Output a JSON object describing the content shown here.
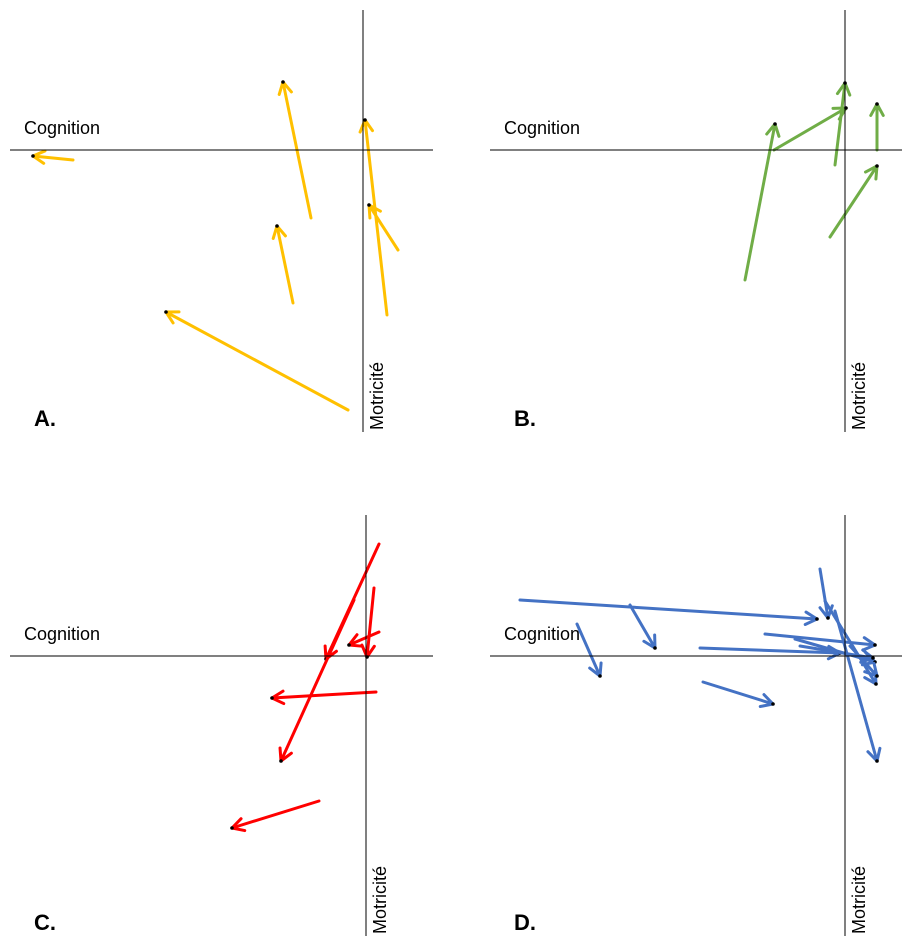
{
  "chart_data": [
    {
      "type": "scatter",
      "panel_label": "A.",
      "xlabel": "Cognition",
      "ylabel": "Motricité",
      "color": "#FFC000",
      "arrows": [
        {
          "from": [
            -2.9,
            -0.1
          ],
          "to": [
            -3.3,
            -0.06
          ]
        },
        {
          "from": [
            -0.52,
            -0.68
          ],
          "to": [
            -0.8,
            0.68
          ]
        },
        {
          "from": [
            -0.7,
            -1.53
          ],
          "to": [
            -0.86,
            -0.76
          ]
        },
        {
          "from": [
            -0.15,
            -2.6
          ],
          "to": [
            -1.97,
            -1.62
          ]
        },
        {
          "from": [
            0.35,
            -1.0
          ],
          "to": [
            0.06,
            -0.55
          ]
        },
        {
          "from": [
            0.24,
            -1.65
          ],
          "to": [
            0.02,
            0.3
          ]
        }
      ]
    },
    {
      "type": "scatter",
      "panel_label": "B.",
      "xlabel": "Cognition",
      "ylabel": "Motricité",
      "color": "#70AD47",
      "arrows": [
        {
          "from": [
            -1.0,
            -1.3
          ],
          "to": [
            -0.7,
            0.26
          ]
        },
        {
          "from": [
            -0.71,
            0.0
          ],
          "to": [
            0.01,
            0.42
          ]
        },
        {
          "from": [
            -0.1,
            -0.15
          ],
          "to": [
            0.0,
            0.67
          ]
        },
        {
          "from": [
            0.32,
            0.0
          ],
          "to": [
            0.32,
            0.46
          ]
        },
        {
          "from": [
            -0.15,
            -0.87
          ],
          "to": [
            0.32,
            -0.16
          ]
        }
      ]
    },
    {
      "type": "scatter",
      "panel_label": "C.",
      "xlabel": "Cognition",
      "ylabel": "Motricité",
      "color": "#FF0000",
      "arrows": [
        {
          "from": [
            0.13,
            1.12
          ],
          "to": [
            -0.4,
            -0.03
          ]
        },
        {
          "from": [
            -0.12,
            0.56
          ],
          "to": [
            -0.85,
            -1.05
          ]
        },
        {
          "from": [
            0.08,
            0.68
          ],
          "to": [
            0.01,
            -0.01
          ]
        },
        {
          "from": [
            0.13,
            0.24
          ],
          "to": [
            -0.17,
            0.11
          ]
        },
        {
          "from": [
            0.1,
            -0.36
          ],
          "to": [
            -0.94,
            -0.42
          ]
        },
        {
          "from": [
            -0.47,
            -1.45
          ],
          "to": [
            -1.34,
            -1.72
          ]
        }
      ]
    },
    {
      "type": "scatter",
      "panel_label": "D.",
      "xlabel": "Cognition",
      "ylabel": "Motricité",
      "color": "#4472C4",
      "arrows": [
        {
          "from": [
            -3.25,
            0.56
          ],
          "to": [
            -0.28,
            0.37
          ]
        },
        {
          "from": [
            -2.15,
            0.51
          ],
          "to": [
            -1.9,
            0.08
          ]
        },
        {
          "from": [
            -2.68,
            0.32
          ],
          "to": [
            -2.45,
            -0.2
          ]
        },
        {
          "from": [
            -1.42,
            -0.26
          ],
          "to": [
            -0.72,
            -0.48
          ]
        },
        {
          "from": [
            -1.45,
            0.08
          ],
          "to": [
            -0.05,
            0.03
          ]
        },
        {
          "from": [
            -0.8,
            0.22
          ],
          "to": [
            0.3,
            0.11
          ]
        },
        {
          "from": [
            -0.25,
            0.87
          ],
          "to": [
            -0.17,
            0.38
          ]
        },
        {
          "from": [
            -0.2,
            0.55
          ],
          "to": [
            0.31,
            -0.28
          ]
        },
        {
          "from": [
            -0.5,
            0.17
          ],
          "to": [
            0.3,
            -0.06
          ]
        },
        {
          "from": [
            -0.45,
            0.1
          ],
          "to": [
            0.28,
            -0.02
          ]
        },
        {
          "from": [
            -0.1,
            0.45
          ],
          "to": [
            0.32,
            -1.05
          ]
        },
        {
          "from": [
            0.05,
            0.1
          ],
          "to": [
            0.32,
            -0.2
          ]
        }
      ]
    }
  ]
}
